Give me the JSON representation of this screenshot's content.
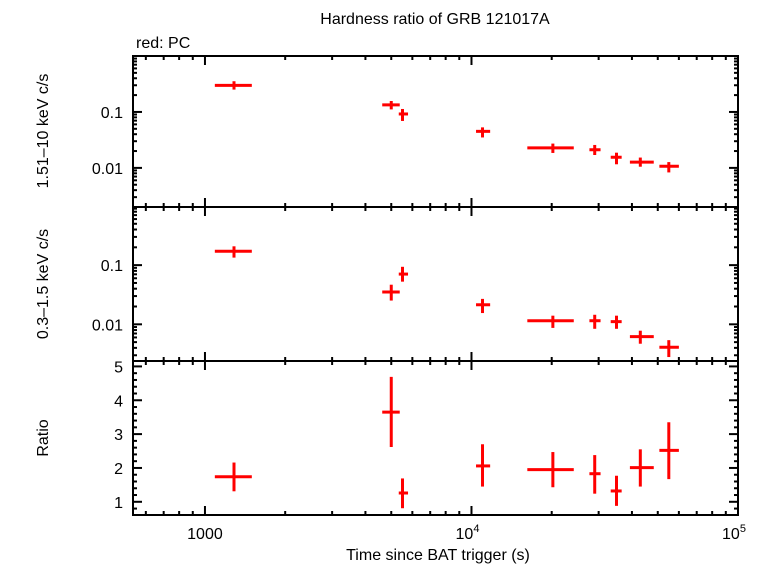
{
  "chart_data": [
    {
      "type": "scatter",
      "title": "Hardness ratio of GRB 121017A",
      "subtitle": "red: PC",
      "ylabel": "1.51–10 keV c/s",
      "yscale": "log",
      "ylim": [
        0.002,
        1.0
      ],
      "yticks": [
        {
          "v": 0.1,
          "label": "0.1"
        },
        {
          "v": 0.01,
          "label": "0.01"
        }
      ],
      "xscale": "log",
      "xlim": [
        537,
        100000
      ],
      "color": "#ff0000",
      "points": [
        {
          "x": 1285,
          "xlo": 1089,
          "xhi": 1499,
          "y": 0.298,
          "ylo": 0.251,
          "yhi": 0.354
        },
        {
          "x": 5000,
          "xlo": 4625,
          "xhi": 5380,
          "y": 0.134,
          "ylo": 0.111,
          "yhi": 0.157
        },
        {
          "x": 5510,
          "xlo": 5335,
          "xhi": 5780,
          "y": 0.092,
          "ylo": 0.069,
          "yhi": 0.113
        },
        {
          "x": 11000,
          "xlo": 10400,
          "xhi": 11750,
          "y": 0.045,
          "ylo": 0.035,
          "yhi": 0.053
        },
        {
          "x": 20200,
          "xlo": 16200,
          "xhi": 24200,
          "y": 0.0228,
          "ylo": 0.0185,
          "yhi": 0.0272
        },
        {
          "x": 29000,
          "xlo": 27700,
          "xhi": 30500,
          "y": 0.0211,
          "ylo": 0.017,
          "yhi": 0.0257
        },
        {
          "x": 35000,
          "xlo": 33300,
          "xhi": 36600,
          "y": 0.0155,
          "ylo": 0.0116,
          "yhi": 0.0187
        },
        {
          "x": 43000,
          "xlo": 39300,
          "xhi": 48300,
          "y": 0.0127,
          "ylo": 0.0105,
          "yhi": 0.0153
        },
        {
          "x": 55000,
          "xlo": 50700,
          "xhi": 60000,
          "y": 0.0107,
          "ylo": 0.0083,
          "yhi": 0.0127
        }
      ]
    },
    {
      "type": "scatter",
      "ylabel": "0.3–1.5 keV c/s",
      "yscale": "log",
      "ylim": [
        0.0024,
        0.96
      ],
      "yticks": [
        {
          "v": 0.1,
          "label": "0.1"
        },
        {
          "v": 0.01,
          "label": "0.01"
        }
      ],
      "xscale": "log",
      "xlim": [
        537,
        100000
      ],
      "color": "#ff0000",
      "points": [
        {
          "x": 1285,
          "xlo": 1089,
          "xhi": 1499,
          "y": 0.172,
          "ylo": 0.134,
          "yhi": 0.208
        },
        {
          "x": 5000,
          "xlo": 4625,
          "xhi": 5380,
          "y": 0.0352,
          "ylo": 0.0252,
          "yhi": 0.0467
        },
        {
          "x": 5510,
          "xlo": 5335,
          "xhi": 5780,
          "y": 0.0706,
          "ylo": 0.0526,
          "yhi": 0.0937
        },
        {
          "x": 11000,
          "xlo": 10400,
          "xhi": 11750,
          "y": 0.0214,
          "ylo": 0.0155,
          "yhi": 0.0269
        },
        {
          "x": 20200,
          "xlo": 16200,
          "xhi": 24200,
          "y": 0.0115,
          "ylo": 0.0087,
          "yhi": 0.014
        },
        {
          "x": 29000,
          "xlo": 27700,
          "xhi": 30500,
          "y": 0.0115,
          "ylo": 0.0084,
          "yhi": 0.0145
        },
        {
          "x": 35000,
          "xlo": 33300,
          "xhi": 36600,
          "y": 0.0111,
          "ylo": 0.0084,
          "yhi": 0.014
        },
        {
          "x": 43000,
          "xlo": 39300,
          "xhi": 48300,
          "y": 0.0062,
          "ylo": 0.0047,
          "yhi": 0.0078
        },
        {
          "x": 55000,
          "xlo": 50700,
          "xhi": 60000,
          "y": 0.0041,
          "ylo": 0.0028,
          "yhi": 0.0054
        }
      ]
    },
    {
      "type": "scatter",
      "ylabel": "Ratio",
      "yscale": "linear",
      "ylim": [
        0.61,
        5.16
      ],
      "yticks": [
        {
          "v": 1,
          "label": "1"
        },
        {
          "v": 2,
          "label": "2"
        },
        {
          "v": 3,
          "label": "3"
        },
        {
          "v": 4,
          "label": "4"
        },
        {
          "v": 5,
          "label": "5"
        }
      ],
      "xscale": "log",
      "xlim": [
        537,
        100000
      ],
      "xlabel": "Time since BAT trigger (s)",
      "xticks": [
        {
          "v": 1000,
          "label": "1000"
        },
        {
          "v": 10000,
          "label": "10",
          "sup": "4"
        },
        {
          "v": 100000,
          "label": "10",
          "sup": "5"
        }
      ],
      "color": "#ff0000",
      "points": [
        {
          "x": 1285,
          "xlo": 1089,
          "xhi": 1499,
          "y": 1.74,
          "ylo": 1.31,
          "yhi": 2.16
        },
        {
          "x": 5000,
          "xlo": 4625,
          "xhi": 5380,
          "y": 3.65,
          "ylo": 2.62,
          "yhi": 4.69
        },
        {
          "x": 5510,
          "xlo": 5335,
          "xhi": 5780,
          "y": 1.26,
          "ylo": 0.81,
          "yhi": 1.69
        },
        {
          "x": 11000,
          "xlo": 10400,
          "xhi": 11750,
          "y": 2.06,
          "ylo": 1.45,
          "yhi": 2.7
        },
        {
          "x": 20200,
          "xlo": 16200,
          "xhi": 24200,
          "y": 1.95,
          "ylo": 1.43,
          "yhi": 2.47
        },
        {
          "x": 29000,
          "xlo": 27700,
          "xhi": 30500,
          "y": 1.83,
          "ylo": 1.24,
          "yhi": 2.38
        },
        {
          "x": 35000,
          "xlo": 33300,
          "xhi": 36600,
          "y": 1.32,
          "ylo": 0.88,
          "yhi": 1.77
        },
        {
          "x": 43000,
          "xlo": 39300,
          "xhi": 48300,
          "y": 2.01,
          "ylo": 1.45,
          "yhi": 2.55
        },
        {
          "x": 55000,
          "xlo": 50700,
          "xhi": 60000,
          "y": 2.52,
          "ylo": 1.67,
          "yhi": 3.35
        }
      ]
    }
  ]
}
